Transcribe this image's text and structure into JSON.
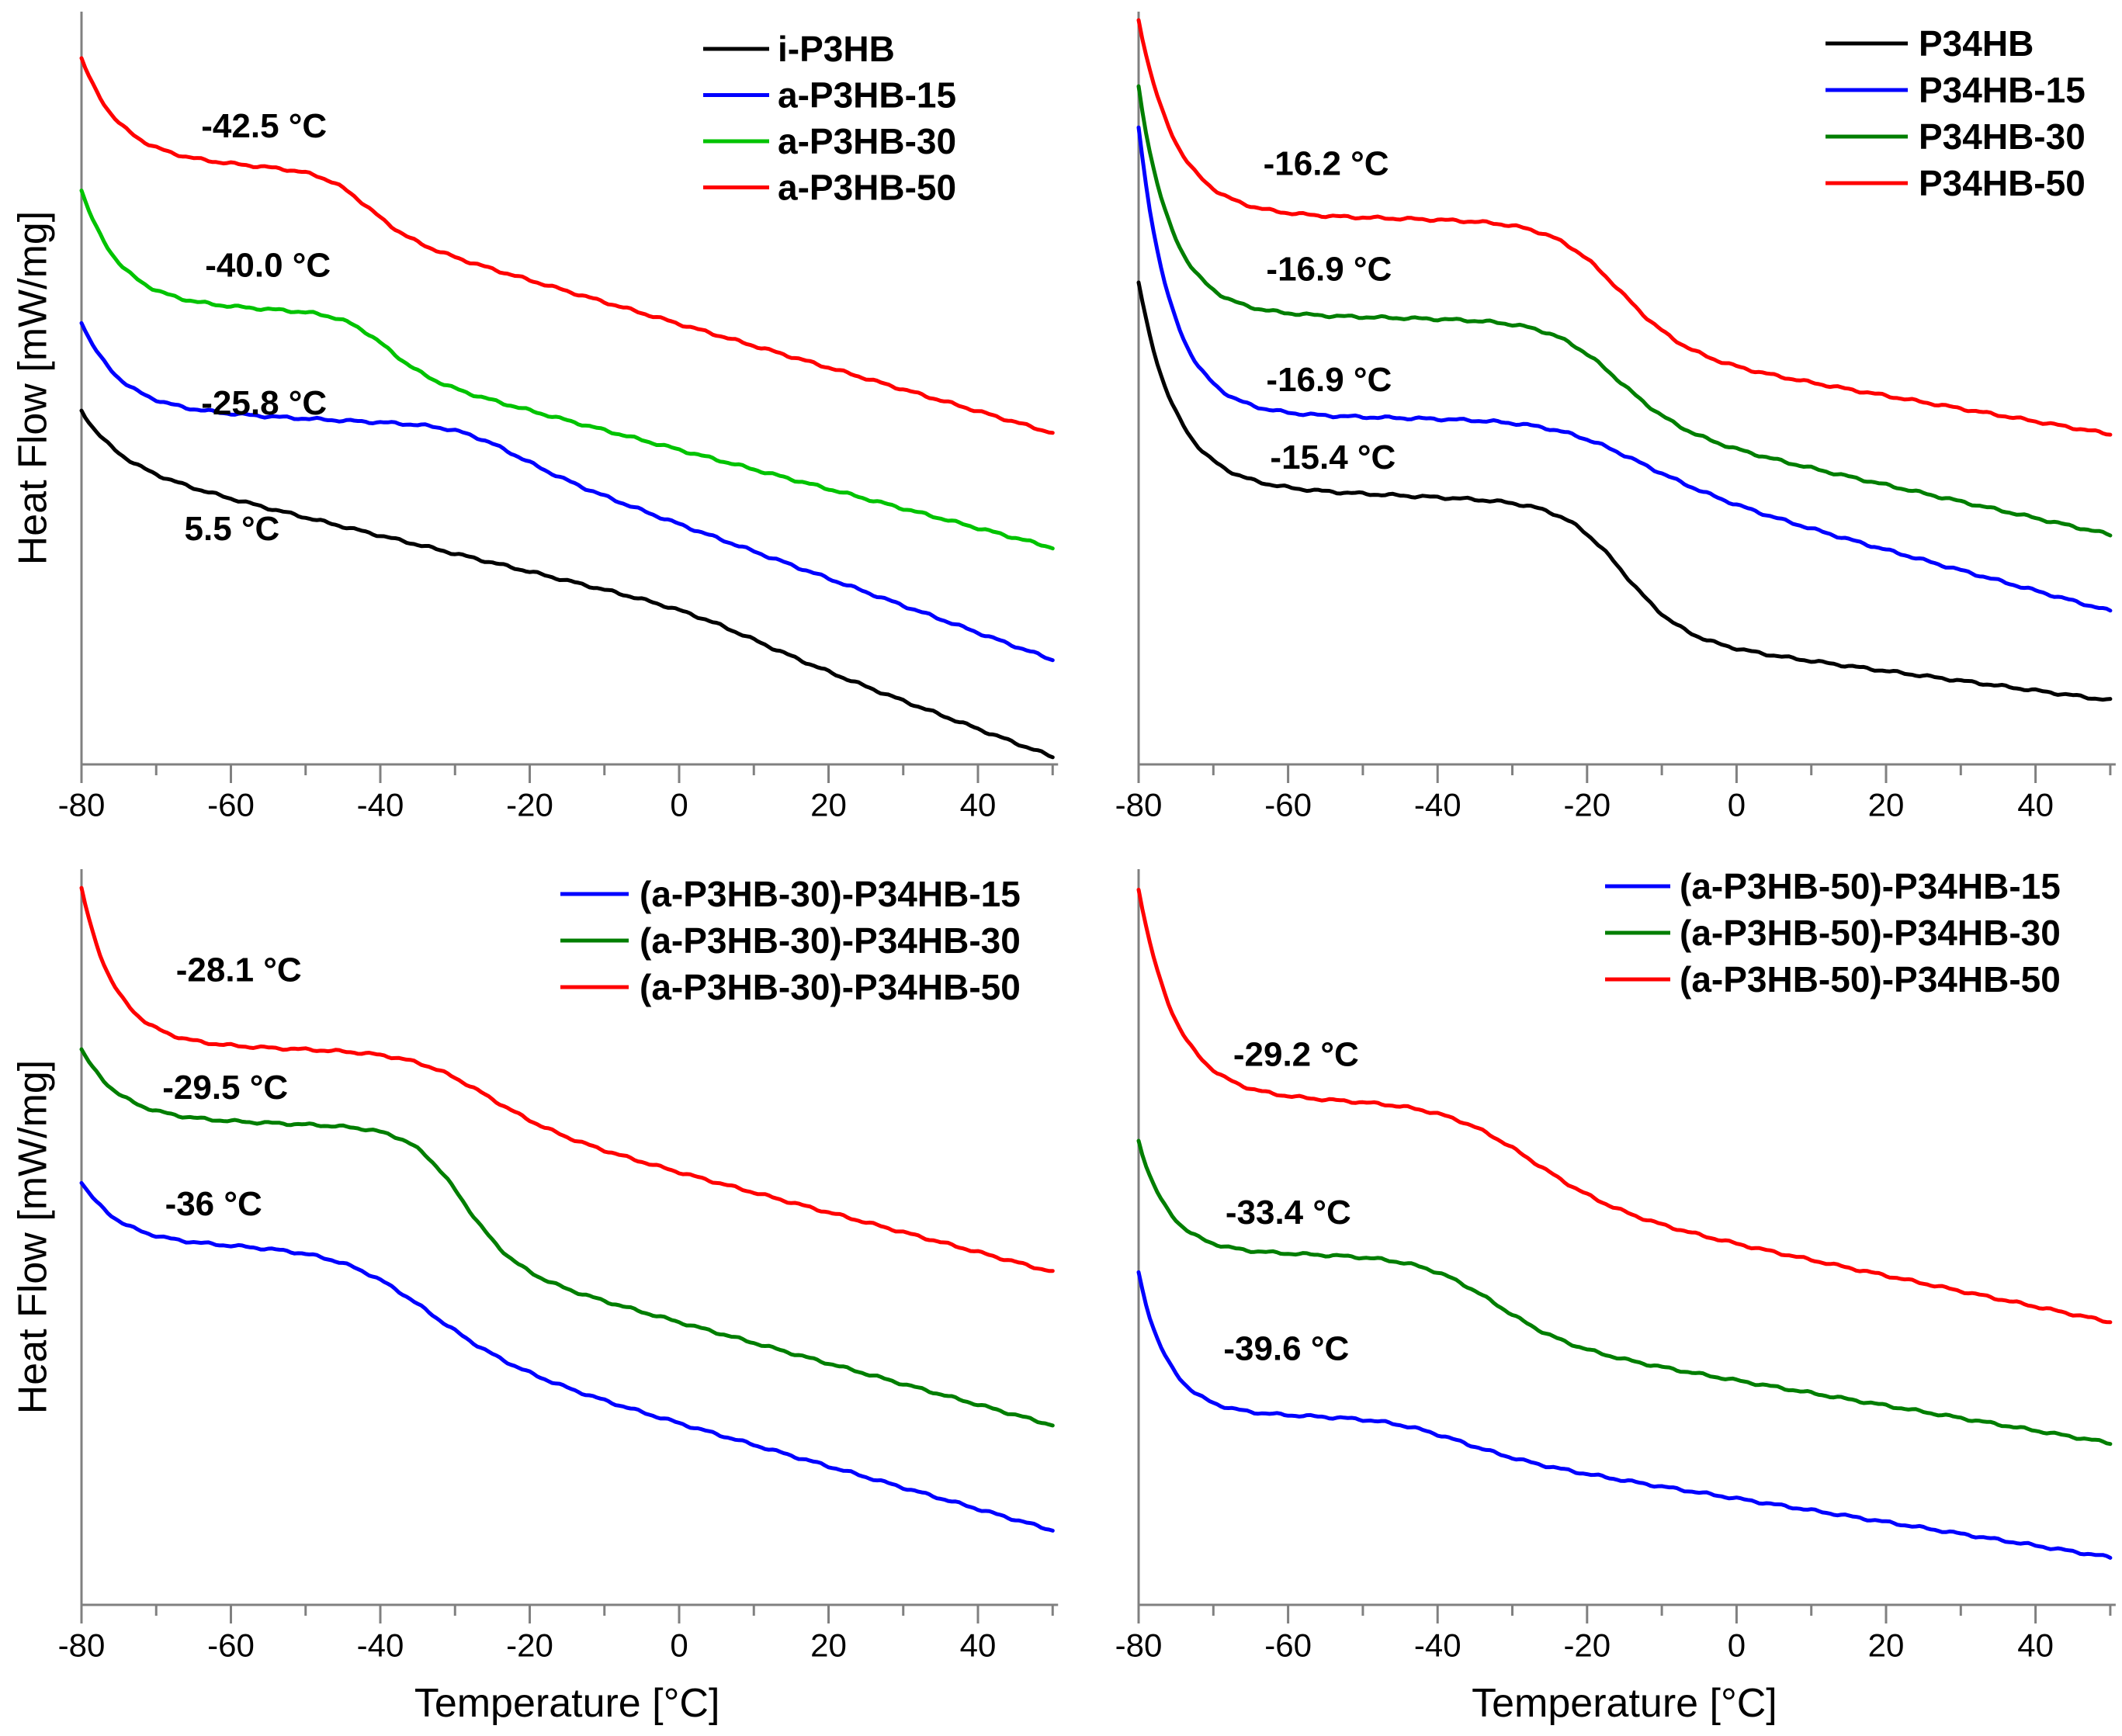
{
  "figure": {
    "background": "#ffffff",
    "axis_color": "#808080",
    "text_color": "#000000",
    "x_axis": {
      "title": "Temperature [°C]",
      "min": -80,
      "max": 50,
      "major_ticks": [
        -80,
        -60,
        -40,
        -20,
        0,
        20,
        40
      ],
      "major_tick_labels": [
        "-80",
        "-60",
        "-40",
        "-20",
        "0",
        "20",
        "40"
      ],
      "minor_ticks": [
        -70,
        -50,
        -30,
        -10,
        10,
        30,
        50
      ]
    },
    "y_axis": {
      "title": "Heat Flow [mW/mg]"
    }
  },
  "chart_data": [
    {
      "type": "line",
      "panel": "top-left",
      "xlabel": "Temperature [°C]",
      "ylabel": "Heat Flow [mW/mg]",
      "xlim": [
        -80,
        50
      ],
      "grid": false,
      "legend_position": "top-right-inside",
      "series": [
        {
          "name": "i-P3HB",
          "color": "#000000",
          "tg_c": 5.5,
          "tg_label": "5.5 °C",
          "label_pos": {
            "x": 0.155,
            "y": 0.69
          },
          "model": {
            "y0": 0.53,
            "A": 0.07,
            "tau": 5,
            "m1": 0.0024,
            "S": 0.02,
            "w": 5,
            "m2": 0.0013
          }
        },
        {
          "name": "a-P3HB-15",
          "color": "#0000FF",
          "tg_c": -25.8,
          "tg_label": "-25.8 °C",
          "label_pos": {
            "x": 0.188,
            "y": 0.523
          },
          "model": {
            "y0": 0.412,
            "A": 0.114,
            "tau": 5,
            "m1": 0.0005,
            "S": 0.035,
            "w": 4,
            "m2": 0.0031
          }
        },
        {
          "name": "a-P3HB-30",
          "color": "#00C300",
          "tg_c": -40.0,
          "tg_label": "-40.0 °C",
          "label_pos": {
            "x": 0.192,
            "y": 0.34
          },
          "model": {
            "y0": 0.237,
            "A": 0.149,
            "tau": 5,
            "m1": 0.0004,
            "S": 0.076,
            "w": 3,
            "m2": 0.0022
          }
        },
        {
          "name": "a-P3HB-50",
          "color": "#FF0000",
          "tg_c": -42.5,
          "tg_label": "-42.5 °C",
          "label_pos": {
            "x": 0.188,
            "y": 0.155
          },
          "model": {
            "y0": 0.062,
            "A": 0.13,
            "tau": 5,
            "m1": 0.0006,
            "S": 0.077,
            "w": 3,
            "m2": 0.0023
          }
        }
      ]
    },
    {
      "type": "line",
      "panel": "top-right",
      "xlabel": "Temperature [°C]",
      "ylabel": "Heat Flow [mW/mg]",
      "xlim": [
        -80,
        50
      ],
      "grid": false,
      "legend_position": "top-right-inside",
      "series": [
        {
          "name": "P34HB",
          "color": "#000000",
          "tg_c": -15.4,
          "tg_label": "-15.4 °C",
          "label_pos": {
            "x": 0.2,
            "y": 0.595
          },
          "model": {
            "y0": 0.36,
            "A": 0.269,
            "tau": 5,
            "m1": 0.0004,
            "S": 0.175,
            "w": 4,
            "m2": 0.0009
          }
        },
        {
          "name": "P34HB-15",
          "color": "#0000FF",
          "tg_c": -16.9,
          "tg_label": "-16.9 °C",
          "label_pos": {
            "x": 0.196,
            "y": 0.492
          },
          "model": {
            "y0": 0.155,
            "A": 0.378,
            "tau": 4.5,
            "m1": 0.0002,
            "S": 0.07,
            "w": 6,
            "m2": 0.0025
          }
        },
        {
          "name": "P34HB-30",
          "color": "#007E00",
          "tg_c": -16.9,
          "tg_label": "-16.9 °C",
          "label_pos": {
            "x": 0.196,
            "y": 0.345
          },
          "model": {
            "y0": 0.1,
            "A": 0.3,
            "tau": 4.5,
            "m1": 0.0002,
            "S": 0.135,
            "w": 4.5,
            "m2": 0.002
          }
        },
        {
          "name": "P34HB-50",
          "color": "#FF0000",
          "tg_c": -16.2,
          "tg_label": "-16.2 °C",
          "label_pos": {
            "x": 0.193,
            "y": 0.205
          },
          "model": {
            "y0": 0.01,
            "A": 0.258,
            "tau": 5,
            "m1": 0.0002,
            "S": 0.168,
            "w": 4.5,
            "m2": 0.0015
          }
        }
      ]
    },
    {
      "type": "line",
      "panel": "bottom-left",
      "xlabel": "Temperature [°C]",
      "ylabel": "Heat Flow [mW/mg]",
      "xlim": [
        -80,
        50
      ],
      "grid": false,
      "legend_position": "top-right-inside",
      "series": [
        {
          "name": "(a-P3HB-30)-P34HB-15",
          "color": "#0000FF",
          "tg_c": -36,
          "tg_label": "-36 °C",
          "label_pos": {
            "x": 0.136,
            "y": 0.458
          },
          "model": {
            "y0": 0.425,
            "A": 0.081,
            "tau": 5,
            "m1": 0.0003,
            "S": 0.13,
            "w": 6,
            "m2": 0.0026
          }
        },
        {
          "name": "(a-P3HB-30)-P34HB-30",
          "color": "#007E00",
          "tg_c": -29.5,
          "tg_label": "-29.5 °C",
          "label_pos": {
            "x": 0.148,
            "y": 0.3
          },
          "model": {
            "y0": 0.245,
            "A": 0.093,
            "tau": 5,
            "m1": 0.0003,
            "S": 0.18,
            "w": 3.5,
            "m2": 0.0025
          }
        },
        {
          "name": "(a-P3HB-30)-P34HB-50",
          "color": "#FF0000",
          "tg_c": -28.1,
          "tg_label": "-28.1 °C",
          "label_pos": {
            "x": 0.162,
            "y": 0.14
          },
          "model": {
            "y0": 0.026,
            "A": 0.21,
            "tau": 4.5,
            "m1": 0.0003,
            "S": 0.085,
            "w": 5,
            "m2": 0.0024
          }
        }
      ]
    },
    {
      "type": "line",
      "panel": "bottom-right",
      "xlabel": "Temperature [°C]",
      "ylabel": "Heat Flow [mW/mg]",
      "xlim": [
        -80,
        50
      ],
      "grid": false,
      "legend_position": "top-right-inside",
      "series": [
        {
          "name": "(a-P3HB-50)-P34HB-15",
          "color": "#0000FF",
          "tg_c": -39.6,
          "tg_label": "-39.6 °C",
          "label_pos": {
            "x": 0.152,
            "y": 0.655
          },
          "model": {
            "y0": 0.549,
            "A": 0.19,
            "tau": 4,
            "m1": 0.0002,
            "S": 0.045,
            "w": 5,
            "m2": 0.0014
          }
        },
        {
          "name": "(a-P3HB-50)-P34HB-30",
          "color": "#007E00",
          "tg_c": -33.4,
          "tg_label": "-33.4 °C",
          "label_pos": {
            "x": 0.154,
            "y": 0.47
          },
          "model": {
            "y0": 0.369,
            "A": 0.15,
            "tau": 4,
            "m1": 0.0002,
            "S": 0.11,
            "w": 5,
            "m2": 0.0015
          }
        },
        {
          "name": "(a-P3HB-50)-P34HB-50",
          "color": "#FF0000",
          "tg_c": -29.2,
          "tg_label": "-29.2 °C",
          "label_pos": {
            "x": 0.162,
            "y": 0.255
          },
          "model": {
            "y0": 0.026,
            "A": 0.283,
            "tau": 5,
            "m1": 0.0002,
            "S": 0.13,
            "w": 6,
            "m2": 0.0019
          }
        }
      ]
    }
  ]
}
